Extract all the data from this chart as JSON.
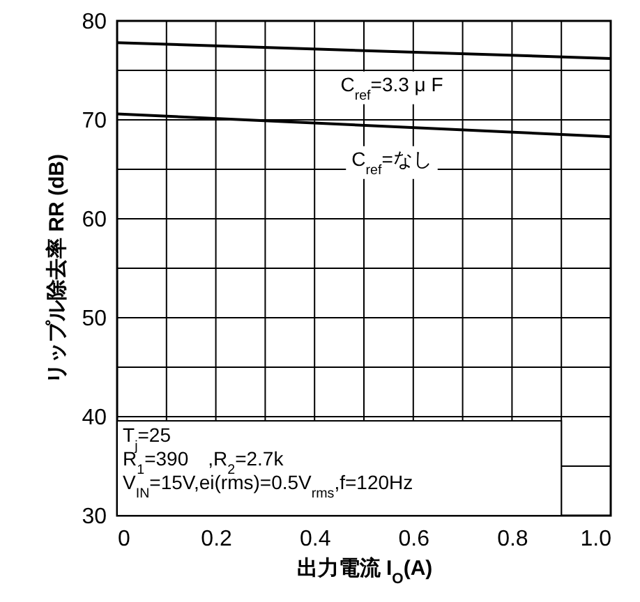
{
  "chart_data": {
    "type": "line",
    "xlabel": "出力電流 I$_{O}$(A)",
    "ylabel": "リップル除去率 RR (dB)",
    "x": [
      0,
      1
    ],
    "series": [
      {
        "name": "C$_{ref}$=3.3 μ F",
        "color": "#000000",
        "values": [
          77.8,
          76.2
        ]
      },
      {
        "name": "C$_{ref}$=なし",
        "color": "#000000",
        "values": [
          70.6,
          68.3
        ]
      }
    ],
    "xlim": [
      0,
      1
    ],
    "ylim": [
      30,
      80
    ],
    "xticks": [
      0,
      {
        "value": 0.1,
        "label": null
      },
      0.2,
      {
        "value": 0.3,
        "label": null
      },
      0.4,
      {
        "value": 0.5,
        "label": null
      },
      0.6,
      {
        "value": 0.7,
        "label": null
      },
      0.8,
      {
        "value": 0.9,
        "label": null
      },
      {
        "value": 1,
        "label": "1.0"
      }
    ],
    "yticks": [
      30,
      {
        "value": 35,
        "label": null
      },
      40,
      {
        "value": 45,
        "label": null
      },
      50,
      {
        "value": 55,
        "label": null
      },
      60,
      {
        "value": 65,
        "label": null
      },
      70,
      {
        "value": 75,
        "label": null
      },
      80
    ],
    "grid": true,
    "marker": "none",
    "line_style": "solid",
    "annotations": [
      "T$_{j}$=25",
      "R$_{1}$=390　,R$_{2}$=2.7k",
      "V$_{IN}$=15V,ei(rms)=0.5V$_{rms}$,f=120Hz"
    ]
  }
}
